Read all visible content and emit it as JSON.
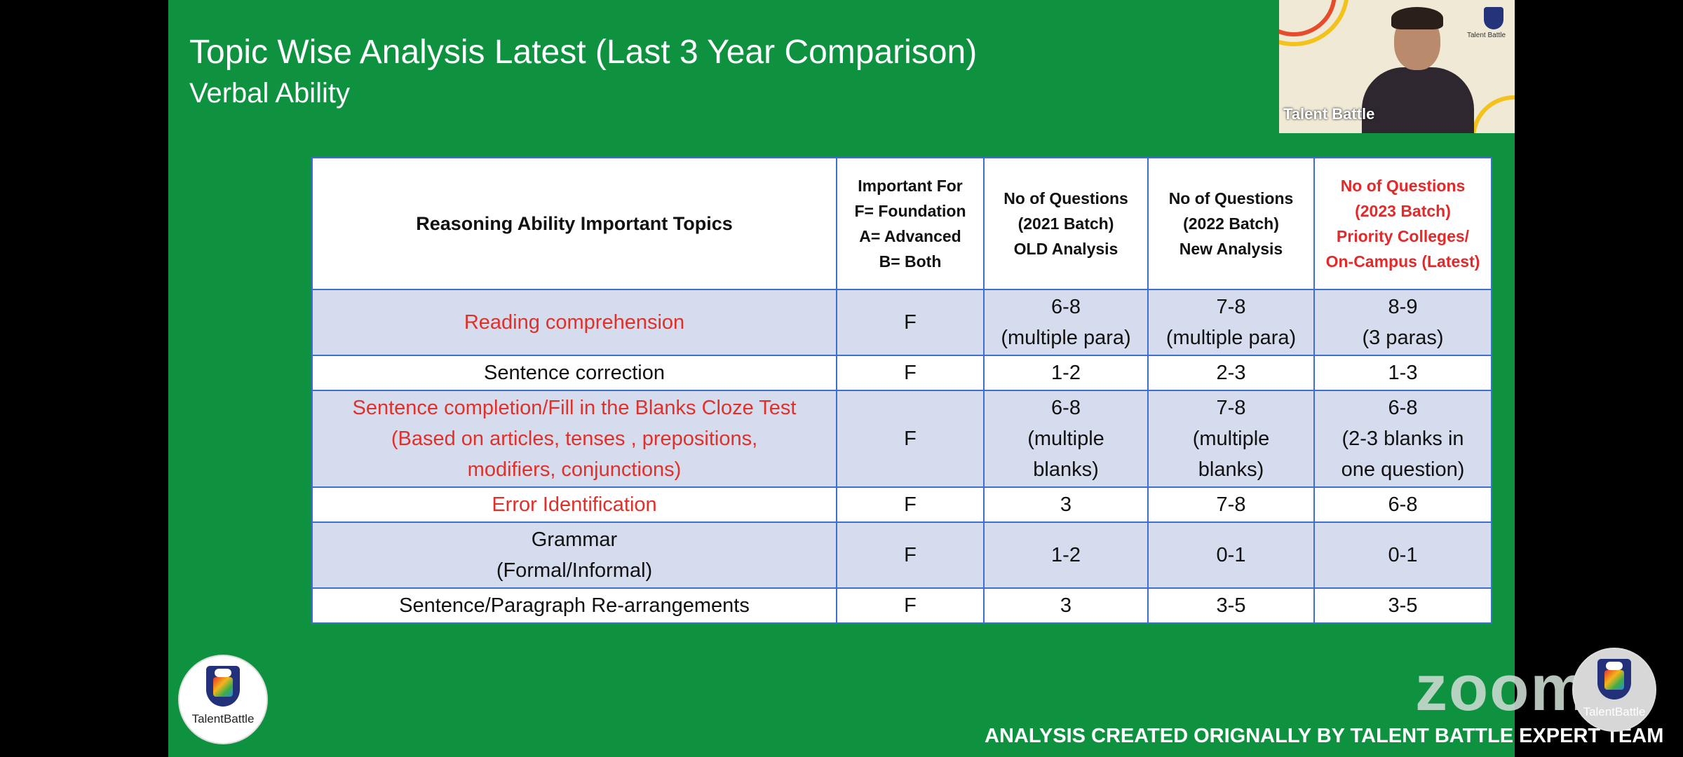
{
  "slide": {
    "title": "Topic Wise Analysis Latest (Last 3 Year Comparison)",
    "subtitle": "Verbal Ability",
    "credit": "ANALYSIS CREATED ORIGNALLY BY TALENT BATTLE EXPERT TEAM",
    "watermark": "zoom",
    "colors": {
      "background": "#0f9240",
      "highlight": "#e0302a",
      "alt_row": "#d5dcee",
      "border": "#3e6fd0"
    }
  },
  "table": {
    "headers": [
      [
        "Reasoning Ability Important Topics"
      ],
      [
        "Important For",
        "F= Foundation",
        "A= Advanced",
        "B= Both"
      ],
      [
        "No of Questions",
        "(2021 Batch)",
        "OLD Analysis"
      ],
      [
        "No of Questions",
        "(2022 Batch)",
        "New Analysis"
      ],
      [
        "No of Questions",
        "(2023 Batch)",
        "Priority Colleges/",
        "On-Campus (Latest)"
      ]
    ],
    "rows": [
      {
        "topic": [
          "Reading comprehension"
        ],
        "red": true,
        "imp": "F",
        "y2021": [
          "6-8",
          "(multiple para)"
        ],
        "y2022": [
          "7-8",
          "(multiple para)"
        ],
        "y2023": [
          "8-9",
          "(3 paras)"
        ]
      },
      {
        "topic": [
          "Sentence correction"
        ],
        "red": false,
        "imp": "F",
        "y2021": [
          "1-2"
        ],
        "y2022": [
          "2-3"
        ],
        "y2023": [
          "1-3"
        ]
      },
      {
        "topic": [
          "Sentence completion/Fill in the Blanks Cloze Test",
          "(Based on articles, tenses , prepositions,",
          "modifiers, conjunctions)"
        ],
        "red": true,
        "imp": "F",
        "y2021": [
          "6-8",
          "(multiple",
          "blanks)"
        ],
        "y2022": [
          "7-8",
          "(multiple",
          "blanks)"
        ],
        "y2023": [
          "6-8",
          "(2-3 blanks in",
          "one question)"
        ]
      },
      {
        "topic": [
          "Error Identification"
        ],
        "red": true,
        "imp": "F",
        "y2021": [
          "3"
        ],
        "y2022": [
          "7-8"
        ],
        "y2023": [
          "6-8"
        ]
      },
      {
        "topic": [
          "Grammar",
          "(Formal/Informal)"
        ],
        "red": false,
        "imp": "F",
        "y2021": [
          "1-2"
        ],
        "y2022": [
          "0-1"
        ],
        "y2023": [
          "0-1"
        ]
      },
      {
        "topic": [
          "Sentence/Paragraph Re-arrangements"
        ],
        "red": false,
        "imp": "F",
        "y2021": [
          "3"
        ],
        "y2022": [
          "3-5"
        ],
        "y2023": [
          "3-5"
        ]
      }
    ]
  },
  "webcam": {
    "participant_name": "Talent Battle",
    "logo_text": "Talent Battle"
  },
  "logos": {
    "left_brand": "TalentBattle",
    "right_brand": "TalentBattle"
  }
}
